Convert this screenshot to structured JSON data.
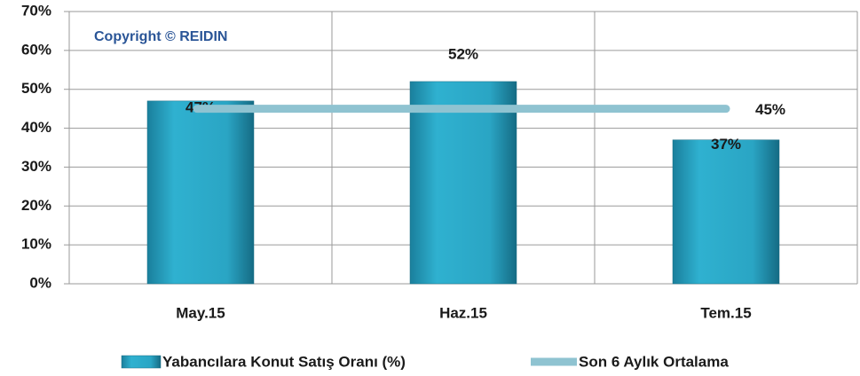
{
  "chart_data": {
    "type": "bar",
    "annotation": "Copyright © REIDIN",
    "categories": [
      "May.15",
      "Haz.15",
      "Tem.15"
    ],
    "series": [
      {
        "name": "Yabancılara Konut Satış Oranı (%)",
        "type": "bar",
        "color": "#2ba3c2",
        "values": [
          47,
          52,
          37
        ],
        "value_labels": [
          "47%",
          "52%",
          "37%"
        ]
      },
      {
        "name": "Son 6 Aylık Ortalama",
        "type": "line",
        "color": "#8fc3d1",
        "values": [
          45,
          45,
          45
        ],
        "value_labels": [
          null,
          null,
          "45%"
        ]
      }
    ],
    "ylim": [
      0,
      70
    ],
    "yticks": [
      {
        "value": 0,
        "label": "0%"
      },
      {
        "value": 10,
        "label": "10%"
      },
      {
        "value": 20,
        "label": "20%"
      },
      {
        "value": 30,
        "label": "30%"
      },
      {
        "value": 40,
        "label": "40%"
      },
      {
        "value": 50,
        "label": "50%"
      },
      {
        "value": 60,
        "label": "60%"
      },
      {
        "value": 70,
        "label": "70%"
      }
    ],
    "grid": true
  }
}
